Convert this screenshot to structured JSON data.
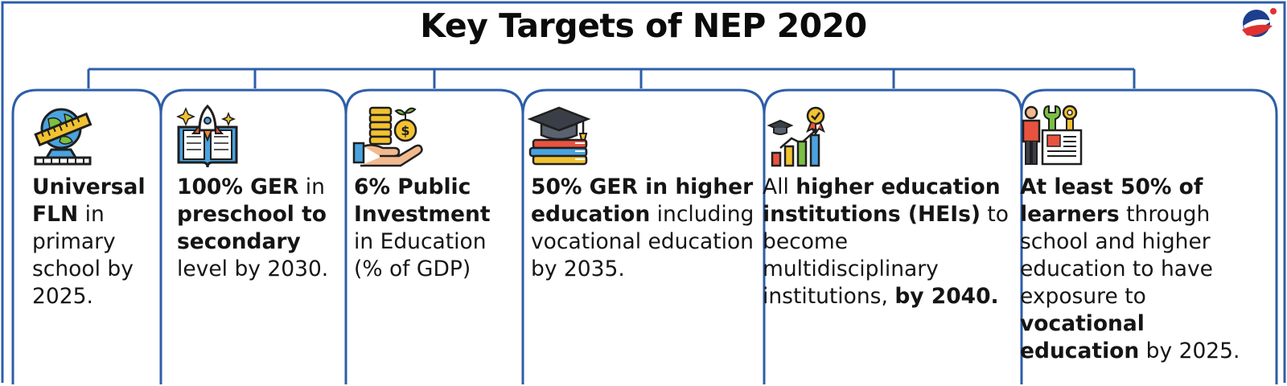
{
  "title": "Key Targets of NEP 2020",
  "colors": {
    "frame": "#2d5ea8",
    "text": "#151515"
  },
  "cards": [
    {
      "icon": "globe-ruler-icon",
      "segments": [
        {
          "t": "Universal FLN",
          "b": true
        },
        {
          "t": " in primary school by 2025.",
          "b": false
        }
      ]
    },
    {
      "icon": "rocket-book-icon",
      "segments": [
        {
          "t": "100% GER",
          "b": true
        },
        {
          "t": " in ",
          "b": false
        },
        {
          "t": "preschool to secondary",
          "b": true
        },
        {
          "t": " level by 2030.",
          "b": false
        }
      ]
    },
    {
      "icon": "coins-hand-icon",
      "segments": [
        {
          "t": "6% Public Investment",
          "b": true
        },
        {
          "t": " in Education (% of GDP)",
          "b": false
        }
      ]
    },
    {
      "icon": "graduation-books-icon",
      "segments": [
        {
          "t": "50% GER in higher education",
          "b": true
        },
        {
          "t": " including vocational education by 2035.",
          "b": false
        }
      ]
    },
    {
      "icon": "growth-chart-icon",
      "segments": [
        {
          "t": "All ",
          "b": false
        },
        {
          "t": "higher education institutions (HEIs)",
          "b": true
        },
        {
          "t": " to become multidisciplinary institutions, ",
          "b": false
        },
        {
          "t": "by 2040.",
          "b": true
        }
      ]
    },
    {
      "icon": "vocational-tools-icon",
      "segments": [
        {
          "t": "At least 50% of learners",
          "b": true
        },
        {
          "t": " through school and higher education to have exposure to ",
          "b": false
        },
        {
          "t": "vocational education",
          "b": true
        },
        {
          "t": " by 2025.",
          "b": false
        }
      ]
    }
  ]
}
